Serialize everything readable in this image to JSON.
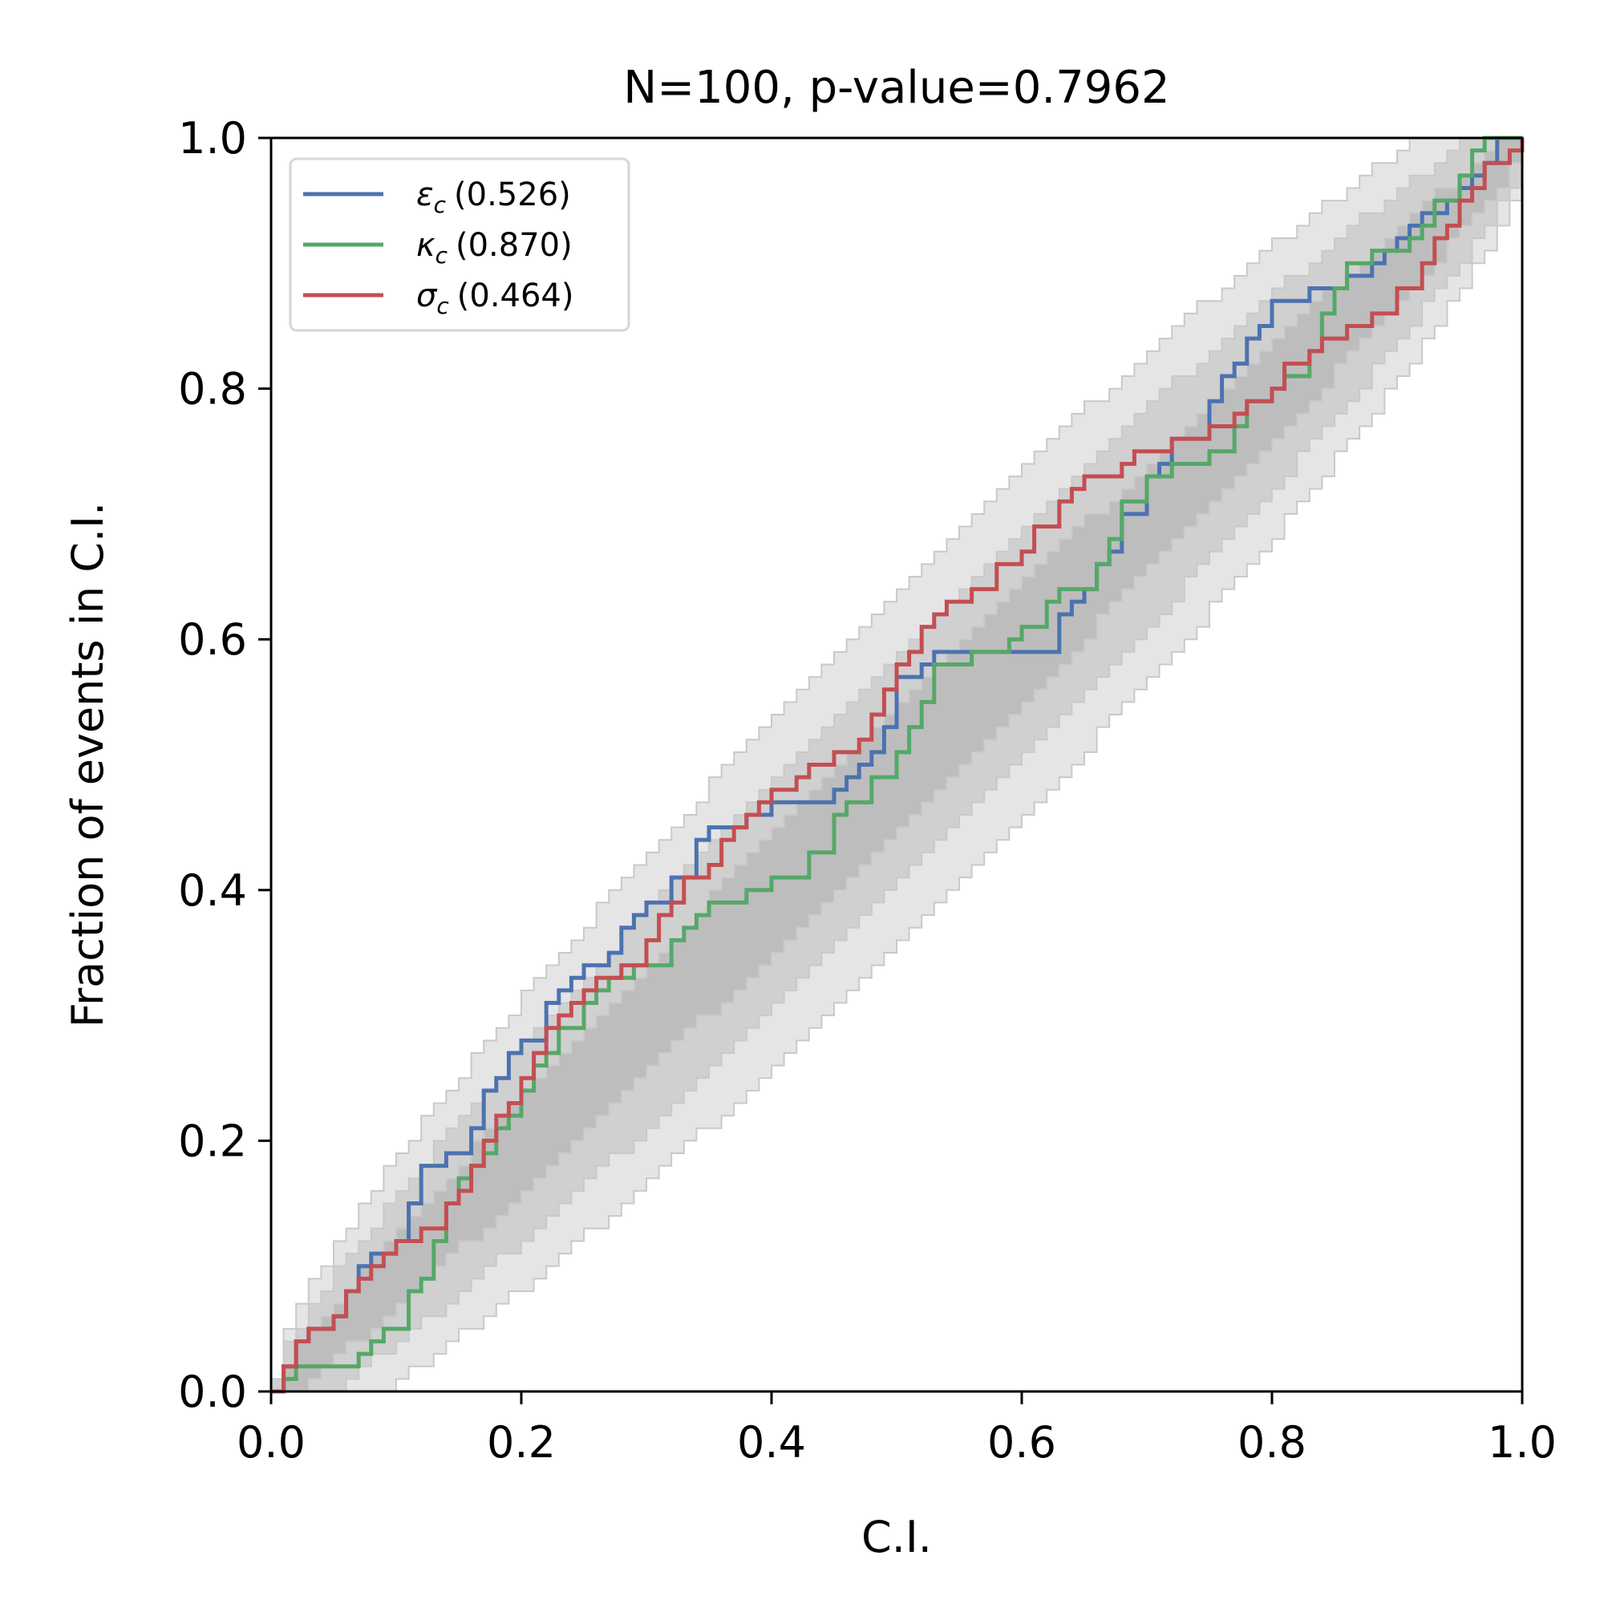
{
  "chart_data": {
    "type": "line",
    "title": "N=100, p-value=0.7962",
    "xlabel": "C.I.",
    "ylabel": "Fraction of events in C.I.",
    "xlim": [
      0,
      1
    ],
    "ylim": [
      0,
      1
    ],
    "xticks": [
      "0.0",
      "0.2",
      "0.4",
      "0.6",
      "0.8",
      "1.0"
    ],
    "yticks": [
      "0.0",
      "0.2",
      "0.4",
      "0.6",
      "0.8",
      "1.0"
    ],
    "grid": false,
    "legend_position": "top-left",
    "confidence_bands": {
      "description_free": true,
      "levels": [
        {
          "halfwidth_scale": 1.0,
          "color": "#bdbdbd"
        },
        {
          "halfwidth_scale": 2.0,
          "color": "#d0d0d0"
        },
        {
          "halfwidth_scale": 3.0,
          "color": "#e5e5e5"
        }
      ]
    },
    "series": [
      {
        "name": "ε_c (0.526)",
        "symbol": "ε",
        "subscript": "c",
        "value": "(0.526)",
        "color": "#4c72b0",
        "x": [
          0.0,
          0.01,
          0.02,
          0.03,
          0.05,
          0.06,
          0.07,
          0.08,
          0.1,
          0.11,
          0.12,
          0.14,
          0.16,
          0.17,
          0.18,
          0.19,
          0.2,
          0.22,
          0.23,
          0.24,
          0.25,
          0.27,
          0.28,
          0.29,
          0.3,
          0.32,
          0.34,
          0.35,
          0.36,
          0.37,
          0.38,
          0.4,
          0.45,
          0.46,
          0.47,
          0.48,
          0.49,
          0.5,
          0.52,
          0.53,
          0.56,
          0.63,
          0.64,
          0.65,
          0.66,
          0.67,
          0.68,
          0.7,
          0.71,
          0.72,
          0.75,
          0.76,
          0.77,
          0.78,
          0.79,
          0.8,
          0.82,
          0.83,
          0.84,
          0.86,
          0.88,
          0.89,
          0.9,
          0.91,
          0.92,
          0.94,
          0.95,
          0.96,
          0.97,
          0.98,
          1.0
        ],
        "y": [
          0.0,
          0.02,
          0.04,
          0.05,
          0.06,
          0.08,
          0.1,
          0.11,
          0.12,
          0.15,
          0.18,
          0.19,
          0.21,
          0.24,
          0.25,
          0.27,
          0.28,
          0.31,
          0.32,
          0.33,
          0.34,
          0.35,
          0.37,
          0.38,
          0.39,
          0.41,
          0.44,
          0.45,
          0.45,
          0.45,
          0.46,
          0.47,
          0.48,
          0.49,
          0.5,
          0.51,
          0.53,
          0.57,
          0.58,
          0.59,
          0.59,
          0.62,
          0.63,
          0.64,
          0.66,
          0.67,
          0.7,
          0.73,
          0.74,
          0.76,
          0.79,
          0.81,
          0.82,
          0.84,
          0.85,
          0.87,
          0.87,
          0.88,
          0.88,
          0.89,
          0.9,
          0.91,
          0.92,
          0.93,
          0.94,
          0.95,
          0.96,
          0.97,
          0.98,
          1.0,
          1.0
        ]
      },
      {
        "name": "κ_c (0.870)",
        "symbol": "κ",
        "subscript": "c",
        "value": "(0.870)",
        "color": "#55a868",
        "x": [
          0.0,
          0.01,
          0.02,
          0.07,
          0.08,
          0.09,
          0.11,
          0.12,
          0.13,
          0.14,
          0.15,
          0.16,
          0.17,
          0.18,
          0.19,
          0.2,
          0.21,
          0.22,
          0.23,
          0.25,
          0.26,
          0.27,
          0.29,
          0.32,
          0.33,
          0.34,
          0.35,
          0.38,
          0.4,
          0.43,
          0.45,
          0.46,
          0.48,
          0.5,
          0.51,
          0.52,
          0.53,
          0.56,
          0.59,
          0.6,
          0.62,
          0.63,
          0.66,
          0.67,
          0.68,
          0.7,
          0.72,
          0.75,
          0.77,
          0.78,
          0.8,
          0.81,
          0.83,
          0.84,
          0.85,
          0.86,
          0.88,
          0.91,
          0.92,
          0.93,
          0.95,
          0.96,
          0.97,
          0.98,
          1.0
        ],
        "y": [
          0.0,
          0.01,
          0.02,
          0.03,
          0.04,
          0.05,
          0.08,
          0.09,
          0.12,
          0.15,
          0.17,
          0.18,
          0.19,
          0.21,
          0.22,
          0.24,
          0.26,
          0.27,
          0.29,
          0.31,
          0.32,
          0.33,
          0.34,
          0.36,
          0.37,
          0.38,
          0.39,
          0.4,
          0.41,
          0.43,
          0.46,
          0.47,
          0.49,
          0.51,
          0.53,
          0.55,
          0.58,
          0.59,
          0.6,
          0.61,
          0.63,
          0.64,
          0.66,
          0.68,
          0.71,
          0.73,
          0.74,
          0.75,
          0.77,
          0.79,
          0.8,
          0.81,
          0.83,
          0.86,
          0.88,
          0.9,
          0.91,
          0.92,
          0.93,
          0.95,
          0.97,
          0.99,
          1.0,
          1.0,
          1.0
        ]
      },
      {
        "name": "σ_c (0.464)",
        "symbol": "σ",
        "subscript": "c",
        "value": "(0.464)",
        "color": "#c44e52",
        "x": [
          0.0,
          0.01,
          0.02,
          0.03,
          0.05,
          0.06,
          0.07,
          0.08,
          0.09,
          0.1,
          0.11,
          0.12,
          0.14,
          0.15,
          0.16,
          0.17,
          0.18,
          0.19,
          0.2,
          0.21,
          0.22,
          0.23,
          0.24,
          0.25,
          0.26,
          0.28,
          0.3,
          0.31,
          0.32,
          0.33,
          0.35,
          0.36,
          0.37,
          0.38,
          0.39,
          0.4,
          0.42,
          0.43,
          0.45,
          0.47,
          0.48,
          0.49,
          0.5,
          0.51,
          0.52,
          0.53,
          0.54,
          0.56,
          0.57,
          0.58,
          0.6,
          0.61,
          0.63,
          0.64,
          0.65,
          0.66,
          0.68,
          0.69,
          0.7,
          0.72,
          0.75,
          0.77,
          0.78,
          0.8,
          0.81,
          0.83,
          0.84,
          0.86,
          0.88,
          0.9,
          0.92,
          0.93,
          0.94,
          0.95,
          0.96,
          0.97,
          0.99,
          1.0
        ],
        "y": [
          0.0,
          0.02,
          0.04,
          0.05,
          0.06,
          0.08,
          0.09,
          0.1,
          0.11,
          0.12,
          0.12,
          0.13,
          0.15,
          0.16,
          0.18,
          0.2,
          0.22,
          0.23,
          0.25,
          0.27,
          0.29,
          0.3,
          0.31,
          0.32,
          0.33,
          0.34,
          0.36,
          0.38,
          0.39,
          0.41,
          0.42,
          0.44,
          0.45,
          0.46,
          0.47,
          0.48,
          0.49,
          0.5,
          0.51,
          0.52,
          0.54,
          0.56,
          0.58,
          0.59,
          0.61,
          0.62,
          0.63,
          0.64,
          0.64,
          0.66,
          0.67,
          0.69,
          0.71,
          0.72,
          0.73,
          0.73,
          0.74,
          0.75,
          0.75,
          0.76,
          0.77,
          0.78,
          0.79,
          0.8,
          0.82,
          0.83,
          0.84,
          0.85,
          0.86,
          0.88,
          0.9,
          0.92,
          0.93,
          0.95,
          0.96,
          0.98,
          0.99,
          1.0
        ]
      }
    ]
  }
}
